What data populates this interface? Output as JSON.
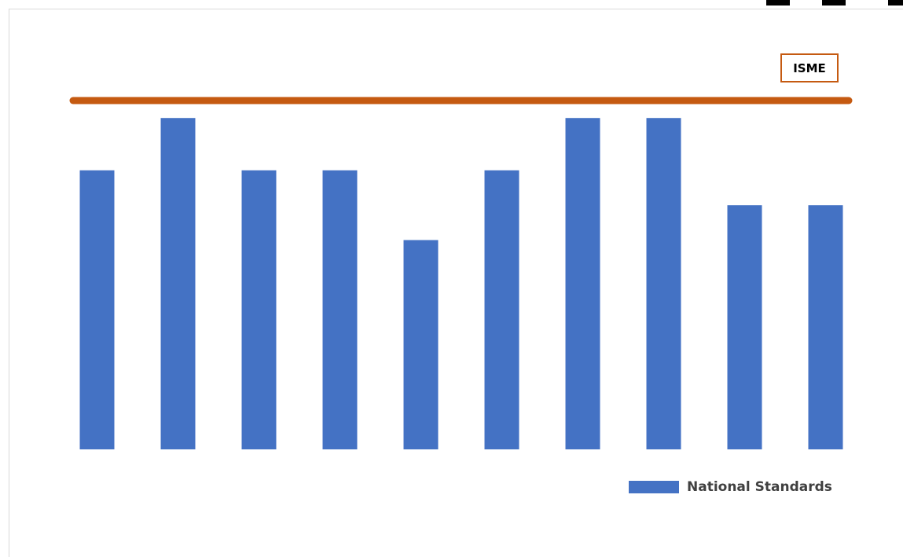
{
  "chart_data": {
    "type": "bar",
    "categories": [
      "",
      "",
      "",
      "",
      "",
      "",
      "",
      "",
      "",
      ""
    ],
    "series": [
      {
        "name": "National Standards",
        "values": [
          8,
          9.5,
          8,
          8,
          6,
          8,
          9.5,
          9.5,
          7,
          7
        ],
        "color": "#4472c4"
      }
    ],
    "reference_line": {
      "label": "ISME",
      "value": 10,
      "color": "#c55a11"
    },
    "ylim": [
      0,
      10
    ],
    "grid": false,
    "legend_position": "bottom-right",
    "title": "",
    "xlabel": "",
    "ylabel": ""
  }
}
